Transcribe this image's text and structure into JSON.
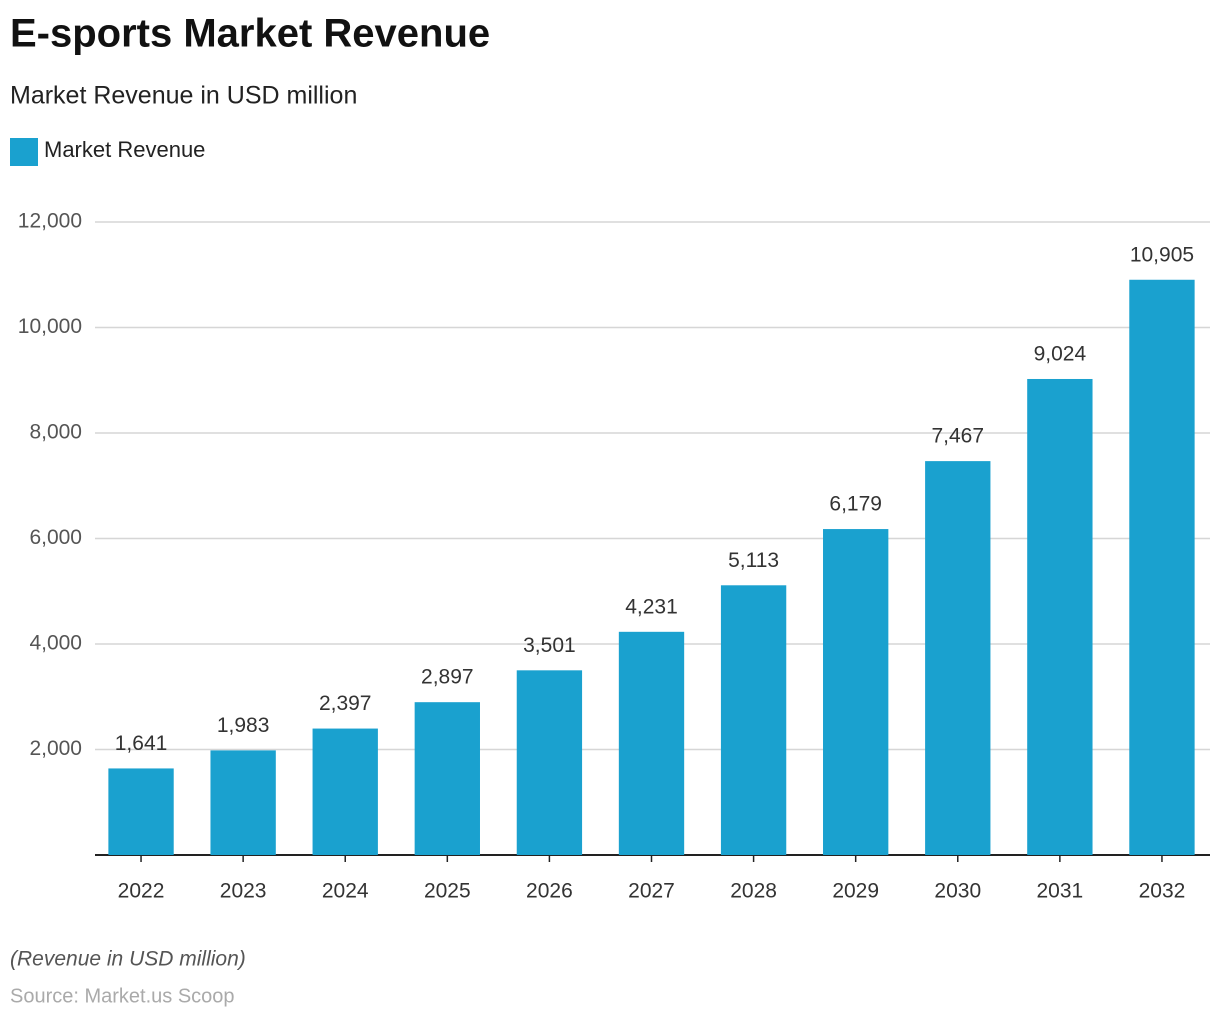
{
  "chart_data": {
    "type": "bar",
    "title": "E-sports Market Revenue",
    "subtitle": "Market Revenue in USD million",
    "categories": [
      "2022",
      "2023",
      "2024",
      "2025",
      "2026",
      "2027",
      "2028",
      "2029",
      "2030",
      "2031",
      "2032"
    ],
    "series": [
      {
        "name": "Market Revenue",
        "color": "#1aa1cf",
        "values": [
          1641,
          1983,
          2397,
          2897,
          3501,
          4231,
          5113,
          6179,
          7467,
          9024,
          10905
        ],
        "value_labels": [
          "1,641",
          "1,983",
          "2,397",
          "2,897",
          "3,501",
          "4,231",
          "5,113",
          "6,179",
          "7,467",
          "9,024",
          "10,905"
        ]
      }
    ],
    "ylim": [
      0,
      12000
    ],
    "yticks": [
      {
        "value": 2000,
        "label": "2,000"
      },
      {
        "value": 4000,
        "label": "4,000"
      },
      {
        "value": 6000,
        "label": "6,000"
      },
      {
        "value": 8000,
        "label": "8,000"
      },
      {
        "value": 10000,
        "label": "10,000"
      },
      {
        "value": 12000,
        "label": "12,000"
      }
    ],
    "grid": true,
    "note": "(Revenue in USD million)",
    "source": "Source: Market.us Scoop"
  }
}
